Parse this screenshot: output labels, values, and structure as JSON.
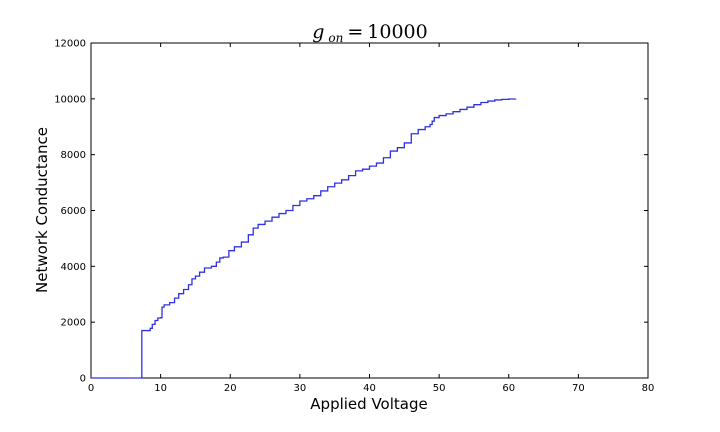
{
  "chart_data": {
    "type": "line",
    "title": {
      "symbol": "g",
      "subscript": "on",
      "equals": "=",
      "value": "10000"
    },
    "xlabel": "Applied Voltage",
    "ylabel": "Network Conductance",
    "xlim": [
      0,
      80
    ],
    "ylim": [
      0,
      12000
    ],
    "xticks": [
      "0",
      "10",
      "20",
      "30",
      "40",
      "50",
      "60",
      "70",
      "80"
    ],
    "yticks": [
      "0",
      "2000",
      "4000",
      "6000",
      "8000",
      "10000",
      "12000"
    ],
    "grid": false,
    "line_color": "#3030e6",
    "series": [
      {
        "x": [
          0,
          7.3,
          7.3,
          8.5,
          8.8,
          9.2,
          9.6,
          10.0,
          10.2,
          10.5,
          11.3,
          12.0,
          12.6,
          13.3,
          14.0,
          14.5,
          15.0,
          15.6,
          16.3,
          17.3,
          18.0,
          18.5,
          19.0,
          19.8,
          20.6,
          21.6,
          22.6,
          23.3,
          24.0,
          25.0,
          26.0,
          27.0,
          28.0,
          29.0,
          30.0,
          31.0,
          32.0,
          33.0,
          34.0,
          35.0,
          36.0,
          37.0,
          38.0,
          39.0,
          40.0,
          41.0,
          42.0,
          43.0,
          44.0,
          45.0,
          46.0,
          47.0,
          48.0,
          48.7,
          49.0,
          49.3,
          50.0,
          51.0,
          52.0,
          53.0,
          54.0,
          55.0,
          56.0,
          57.0,
          58.0,
          59.0,
          60.0,
          61.0
        ],
        "y": [
          0,
          0,
          1700,
          1780,
          1920,
          2060,
          2150,
          2160,
          2540,
          2620,
          2700,
          2860,
          3020,
          3170,
          3340,
          3550,
          3650,
          3790,
          3940,
          4000,
          4150,
          4300,
          4330,
          4560,
          4700,
          4870,
          5130,
          5370,
          5500,
          5620,
          5760,
          5890,
          6000,
          6180,
          6340,
          6420,
          6530,
          6700,
          6850,
          6980,
          7100,
          7250,
          7420,
          7480,
          7590,
          7700,
          7890,
          8130,
          8250,
          8420,
          8750,
          8900,
          9000,
          9080,
          9200,
          9330,
          9400,
          9460,
          9540,
          9620,
          9700,
          9790,
          9870,
          9920,
          9960,
          9980,
          9995,
          10000
        ]
      }
    ]
  }
}
